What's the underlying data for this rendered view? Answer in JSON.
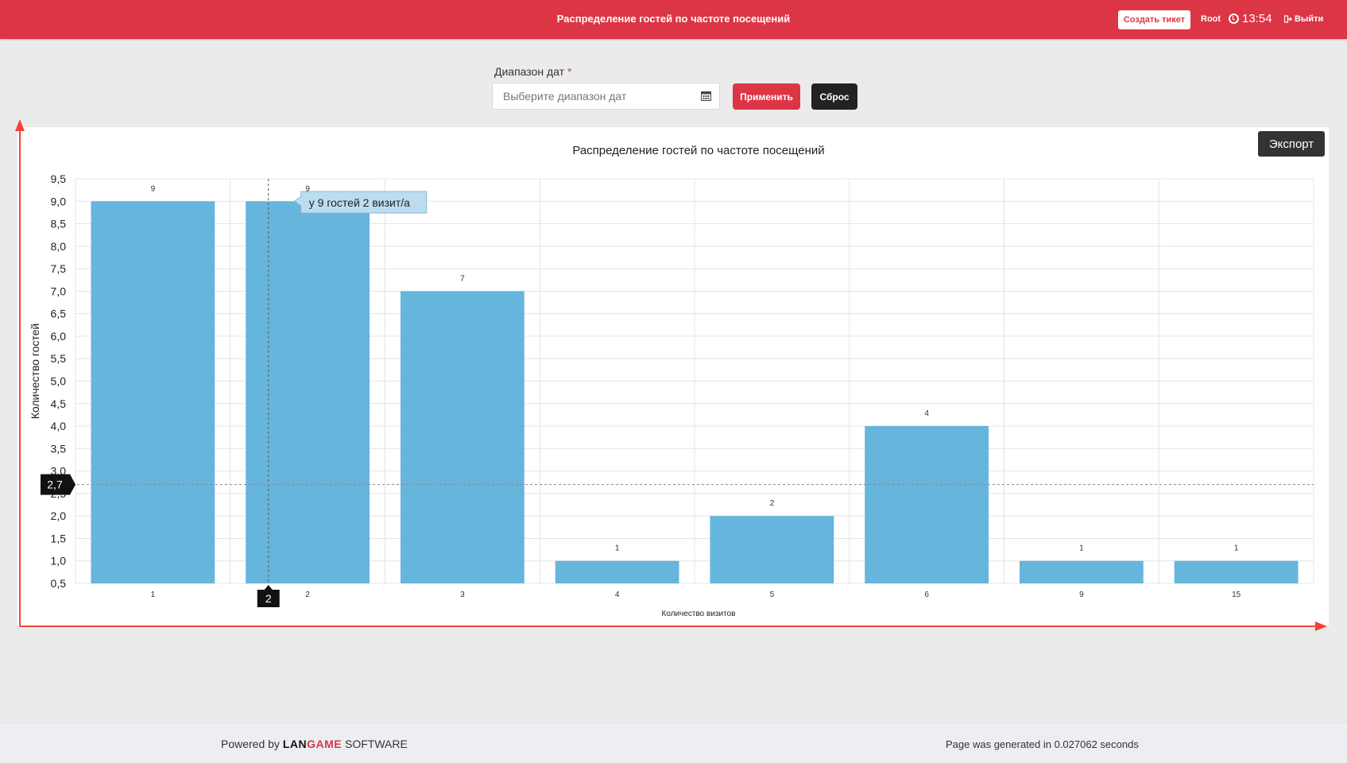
{
  "header": {
    "title": "Распределение гостей по частоте посещений",
    "ticket_button": "Создать тикет",
    "user": "Root",
    "time": "13:54",
    "logout": "Выйти"
  },
  "filter": {
    "label": "Диапазон дат",
    "required_mark": "*",
    "placeholder": "Выберите диапазон дат",
    "apply_button": "Применить",
    "reset_button": "Сброс"
  },
  "export_button": "Экспорт",
  "colors": {
    "accent": "#dc3545",
    "bar": "#66b5dc",
    "annotation_arrow": "#f44336"
  },
  "chart_data": {
    "type": "bar",
    "title": "Распределение гостей по частоте посещений",
    "xlabel": "Количество визитов",
    "ylabel": "Количество гостей",
    "categories": [
      "1",
      "2",
      "3",
      "4",
      "5",
      "6",
      "9",
      "15"
    ],
    "values": [
      9,
      9,
      7,
      1,
      2,
      4,
      1,
      1
    ],
    "ylim": [
      0.5,
      9.5
    ],
    "yticks": [
      "0,5",
      "1,0",
      "1,5",
      "2,0",
      "2,5",
      "3,0",
      "3,5",
      "4,0",
      "4,5",
      "5,0",
      "5,5",
      "6,0",
      "6,5",
      "7,0",
      "7,5",
      "8,0",
      "8,5",
      "9,0",
      "9,5"
    ],
    "grid": true,
    "tooltip": {
      "text": "у 9 гостей 2 визит/а",
      "category": "2",
      "crosshair_y_label": "2,7",
      "crosshair_y_value": 2.7
    }
  },
  "footer": {
    "powered_prefix": "Powered by",
    "brand_lan": "LAN",
    "brand_game": "GAME",
    "brand_suffix": "SOFTWARE",
    "generated": "Page was generated in 0.027062 seconds"
  }
}
